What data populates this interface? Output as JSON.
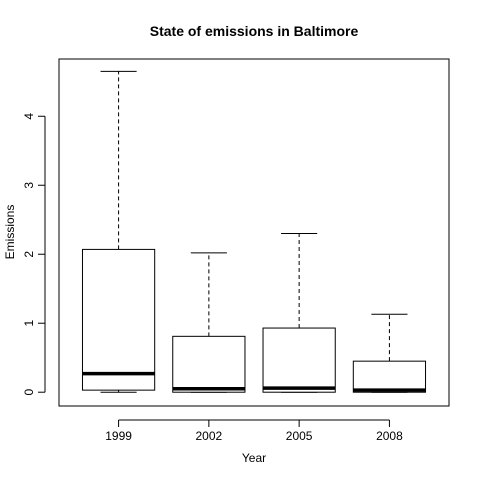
{
  "chart_data": {
    "type": "box",
    "title": "State of emissions in Baltimore",
    "xlabel": "Year",
    "ylabel": "Emissions",
    "categories": [
      "1999",
      "2002",
      "2005",
      "2008"
    ],
    "boxes": [
      {
        "category": "1999",
        "min": 0.0,
        "q1": 0.03,
        "median": 0.27,
        "q3": 2.07,
        "max": 4.65
      },
      {
        "category": "2002",
        "min": 0.0,
        "q1": 0.0,
        "median": 0.05,
        "q3": 0.81,
        "max": 2.02
      },
      {
        "category": "2005",
        "min": 0.0,
        "q1": 0.0,
        "median": 0.06,
        "q3": 0.93,
        "max": 2.3
      },
      {
        "category": "2008",
        "min": 0.0,
        "q1": 0.0,
        "median": 0.03,
        "q3": 0.45,
        "max": 1.13
      }
    ],
    "yticks": [
      0,
      1,
      2,
      3,
      4
    ],
    "ylim": [
      -0.2,
      4.83
    ],
    "grid": false,
    "legend": "none"
  }
}
